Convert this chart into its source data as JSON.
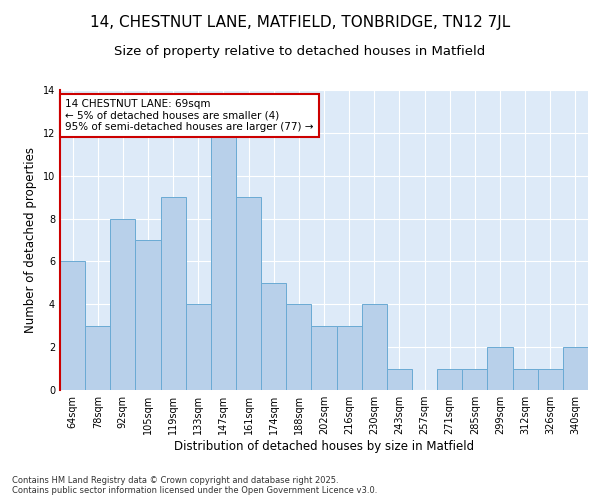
{
  "title": "14, CHESTNUT LANE, MATFIELD, TONBRIDGE, TN12 7JL",
  "subtitle": "Size of property relative to detached houses in Matfield",
  "xlabel": "Distribution of detached houses by size in Matfield",
  "ylabel": "Number of detached properties",
  "categories": [
    "64sqm",
    "78sqm",
    "92sqm",
    "105sqm",
    "119sqm",
    "133sqm",
    "147sqm",
    "161sqm",
    "174sqm",
    "188sqm",
    "202sqm",
    "216sqm",
    "230sqm",
    "243sqm",
    "257sqm",
    "271sqm",
    "285sqm",
    "299sqm",
    "312sqm",
    "326sqm",
    "340sqm"
  ],
  "values": [
    6,
    3,
    8,
    7,
    9,
    4,
    12,
    9,
    5,
    4,
    3,
    3,
    4,
    1,
    0,
    1,
    1,
    2,
    1,
    1,
    2
  ],
  "bar_color": "#b8d0ea",
  "bar_edge_color": "#6aaad4",
  "annotation_text": "14 CHESTNUT LANE: 69sqm\n← 5% of detached houses are smaller (4)\n95% of semi-detached houses are larger (77) →",
  "annotation_box_color": "#ffffff",
  "annotation_box_edge_color": "#cc0000",
  "ylim": [
    0,
    14
  ],
  "yticks": [
    0,
    2,
    4,
    6,
    8,
    10,
    12,
    14
  ],
  "background_color": "#ddeaf8",
  "footer_text": "Contains HM Land Registry data © Crown copyright and database right 2025.\nContains public sector information licensed under the Open Government Licence v3.0.",
  "title_fontsize": 11,
  "subtitle_fontsize": 9.5,
  "axis_label_fontsize": 8.5,
  "tick_fontsize": 7,
  "annotation_fontsize": 7.5,
  "footer_fontsize": 6
}
